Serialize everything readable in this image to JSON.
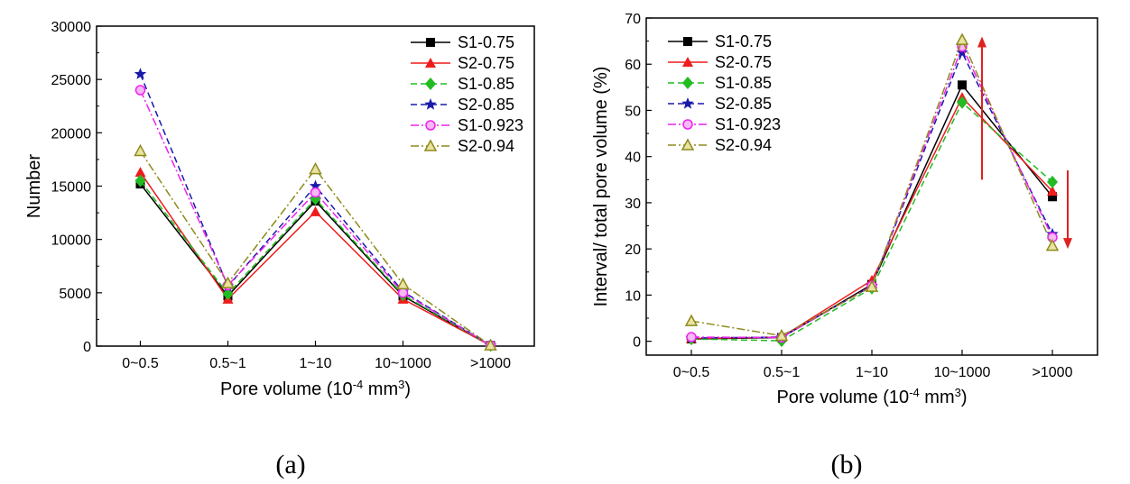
{
  "chart_data": [
    {
      "type": "line",
      "caption": "(a)",
      "categories": [
        "0~0.5",
        "0.5~1",
        "1~10",
        "10~1000",
        ">1000"
      ],
      "xlabel": {
        "pre": "Pore volume (10",
        "sup1": "-4",
        "mid": " mm",
        "sup2": "3",
        "post": ")"
      },
      "ylabel": "Number",
      "ylim": [
        0,
        30000
      ],
      "yticks": [
        "0",
        "5000",
        "10000",
        "15000",
        "20000",
        "25000",
        "30000"
      ],
      "yticks_values": [
        0,
        5000,
        10000,
        15000,
        20000,
        25000,
        30000
      ],
      "legend_position": "top-right",
      "series": [
        {
          "name": "S1-0.75",
          "values": [
            15200,
            4700,
            13600,
            4700,
            50
          ],
          "color": "#000000",
          "marker": "square",
          "dash": "solid"
        },
        {
          "name": "S2-0.75",
          "values": [
            16300,
            4400,
            12600,
            4400,
            60
          ],
          "color": "#ee1c1c",
          "marker": "triangle",
          "dash": "solid"
        },
        {
          "name": "S1-0.85",
          "values": [
            15500,
            4900,
            13800,
            4800,
            50
          ],
          "color": "#22bb22",
          "marker": "diamond",
          "dash": "dash"
        },
        {
          "name": "S2-0.85",
          "values": [
            25500,
            5600,
            15000,
            5100,
            60
          ],
          "color": "#1a1aaa",
          "marker": "star",
          "dash": "dash"
        },
        {
          "name": "S1-0.923",
          "values": [
            24000,
            5700,
            14400,
            5000,
            60
          ],
          "color": "#ee22ee",
          "marker": "circle",
          "dash": "dashdot"
        },
        {
          "name": "S2-0.94",
          "values": [
            18300,
            5900,
            16600,
            5800,
            70
          ],
          "color": "#8f8a1c",
          "marker": "triangle-open",
          "dash": "dashdot"
        }
      ]
    },
    {
      "type": "line",
      "caption": "(b)",
      "categories": [
        "0~0.5",
        "0.5~1",
        "1~10",
        "10~1000",
        ">1000"
      ],
      "xlabel": {
        "pre": "Pore volume (10",
        "sup1": "-4",
        "mid": " mm",
        "sup2": "3",
        "post": ")"
      },
      "ylabel": "Interval/ total pore volume (%)",
      "ylim": [
        -3,
        70
      ],
      "yticks": [
        "0",
        "10",
        "20",
        "30",
        "40",
        "50",
        "60",
        "70"
      ],
      "yticks_values": [
        0,
        10,
        20,
        30,
        40,
        50,
        60,
        70
      ],
      "legend_position": "top-left",
      "series": [
        {
          "name": "S1-0.75",
          "values": [
            0.5,
            0.8,
            12.3,
            55.5,
            31.3
          ],
          "color": "#000000",
          "marker": "square",
          "dash": "solid"
        },
        {
          "name": "S2-0.75",
          "values": [
            0.6,
            0.9,
            13.2,
            52.8,
            32.5
          ],
          "color": "#ee1c1c",
          "marker": "triangle",
          "dash": "solid"
        },
        {
          "name": "S1-0.85",
          "values": [
            0.5,
            0.1,
            11.5,
            51.7,
            34.5
          ],
          "color": "#22bb22",
          "marker": "diamond",
          "dash": "dash"
        },
        {
          "name": "S2-0.85",
          "values": [
            0.7,
            0.9,
            12.0,
            62.5,
            23.2
          ],
          "color": "#1a1aaa",
          "marker": "star",
          "dash": "dash"
        },
        {
          "name": "S1-0.923",
          "values": [
            0.9,
            0.8,
            12.0,
            63.8,
            22.5
          ],
          "color": "#ee22ee",
          "marker": "circle",
          "dash": "dashdot"
        },
        {
          "name": "S2-0.94",
          "values": [
            4.4,
            1.2,
            11.8,
            65.3,
            20.7
          ],
          "color": "#8f8a1c",
          "marker": "triangle-open",
          "dash": "dashdot"
        }
      ],
      "annotations": [
        {
          "type": "arrow-up",
          "color": "#e02020",
          "x_category": 3,
          "x_offset": 0.22,
          "from": 35,
          "to": 66
        },
        {
          "type": "arrow-down",
          "color": "#e02020",
          "x_category": 4,
          "x_offset": 0.17,
          "from": 37,
          "to": 20
        }
      ]
    }
  ]
}
